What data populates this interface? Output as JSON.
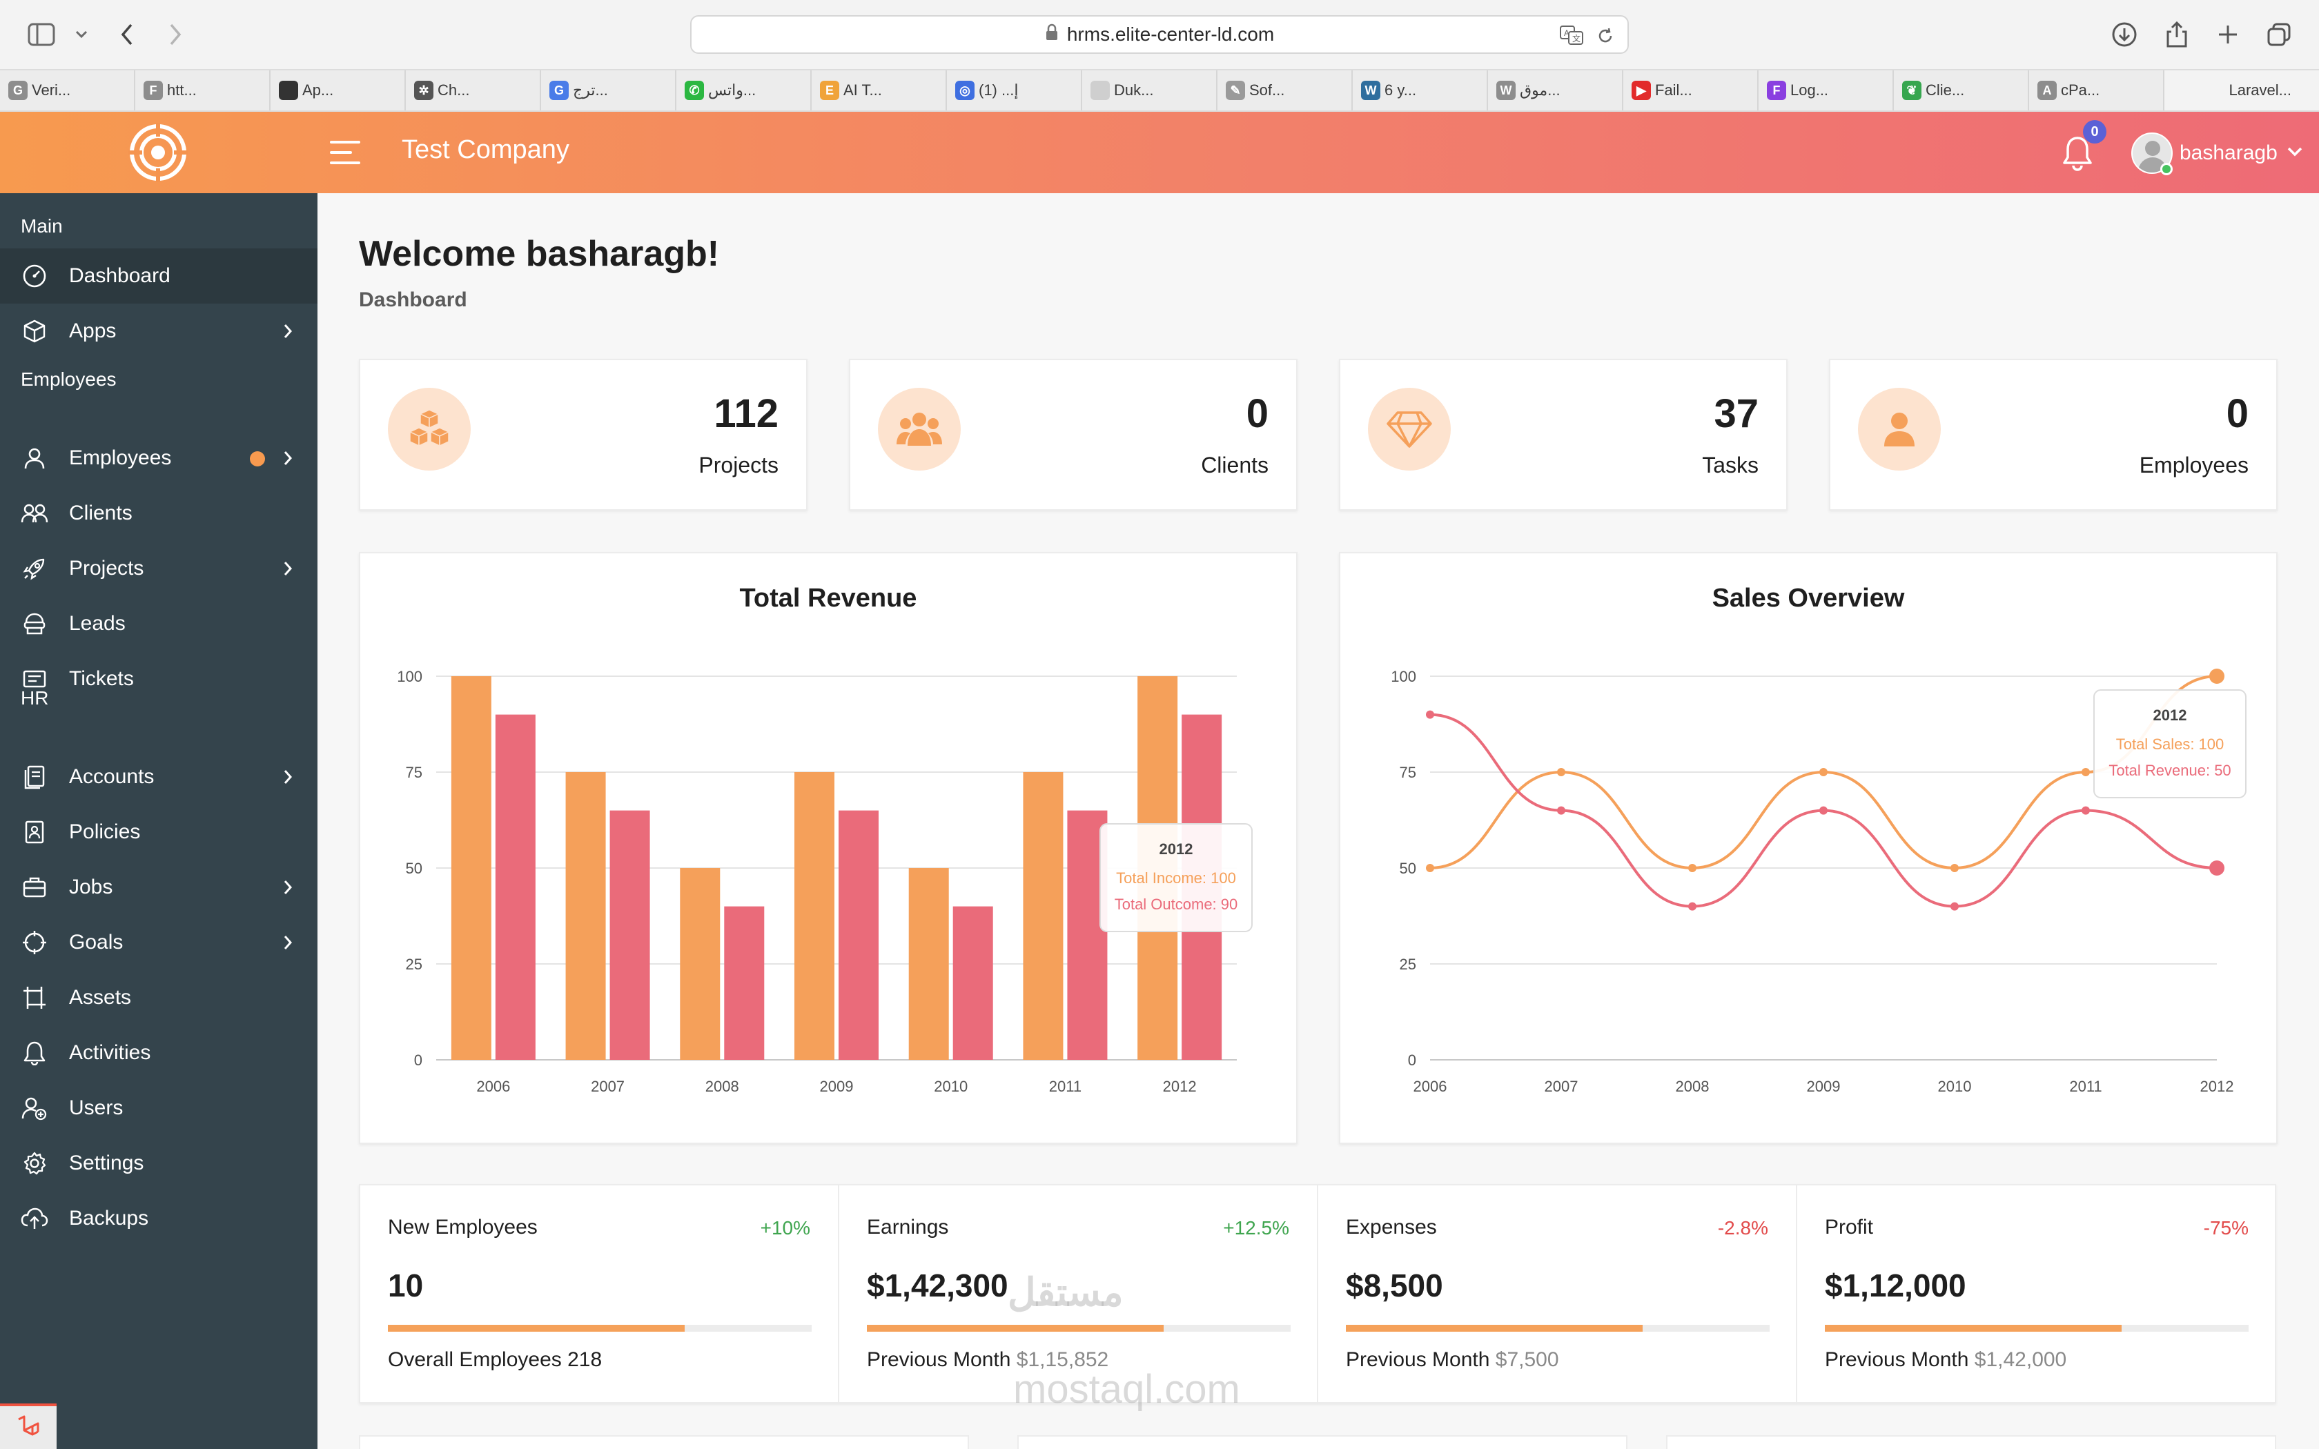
{
  "browser": {
    "url": "hrms.elite-center-ld.com",
    "bookmarks": [
      {
        "label": "Veri...",
        "icon": "g-logo-icon",
        "color": "#8d8d8d",
        "glyph": "G"
      },
      {
        "label": "htt...",
        "icon": "f-logo-icon",
        "color": "#8d8d8d",
        "glyph": "F"
      },
      {
        "label": "Ap...",
        "icon": "apple-icon",
        "color": "#333333",
        "glyph": ""
      },
      {
        "label": "Ch...",
        "icon": "chatgpt-icon",
        "color": "#555555",
        "glyph": "✲"
      },
      {
        "label": "ترج...",
        "icon": "translate-icon",
        "color": "#4a7ce8",
        "glyph": "G"
      },
      {
        "label": "واتس...",
        "icon": "whatsapp-icon",
        "color": "#2bb741",
        "glyph": "✆"
      },
      {
        "label": "AI T...",
        "icon": "e-logo-icon",
        "color": "#f0a33a",
        "glyph": "E"
      },
      {
        "label": "(1) ...إ",
        "icon": "circle-logo-icon",
        "color": "#3f6fe0",
        "glyph": "◎"
      },
      {
        "label": "Duk...",
        "icon": "blank-page-icon",
        "color": "#cfcfcf",
        "glyph": ""
      },
      {
        "label": "Sof...",
        "icon": "feather-icon",
        "color": "#9a9a9a",
        "glyph": "✎"
      },
      {
        "label": "6 y...",
        "icon": "wordpress-icon",
        "color": "#2f6e9e",
        "glyph": "W"
      },
      {
        "label": "موق...",
        "icon": "w-logo-icon",
        "color": "#8d8d8d",
        "glyph": "W"
      },
      {
        "label": "Fail...",
        "icon": "youtube-icon",
        "color": "#e22b2b",
        "glyph": "▶"
      },
      {
        "label": "Log...",
        "icon": "f-purple-icon",
        "color": "#8a3fe0",
        "glyph": "F"
      },
      {
        "label": "Clie...",
        "icon": "leaf-icon",
        "color": "#36a64f",
        "glyph": "❦"
      },
      {
        "label": "cPa...",
        "icon": "a-logo-icon",
        "color": "#8d8d8d",
        "glyph": "A"
      }
    ],
    "last_tab": "Laravel..."
  },
  "header": {
    "company": "Test Company",
    "notifications": "0",
    "username": "basharagb"
  },
  "sidebar": {
    "sections": {
      "main": "Main",
      "employees": "Employees",
      "hr": "HR"
    },
    "items": [
      {
        "label": "Dashboard",
        "icon": "dashboard-icon",
        "active": true,
        "arrow": false
      },
      {
        "label": "Apps",
        "icon": "cube-icon",
        "arrow": true
      },
      {
        "label": "Employees",
        "icon": "user-icon",
        "arrow": true,
        "dot": true
      },
      {
        "label": "Clients",
        "icon": "users-icon",
        "arrow": false
      },
      {
        "label": "Projects",
        "icon": "rocket-icon",
        "arrow": true
      },
      {
        "label": "Leads",
        "icon": "leads-icon",
        "arrow": false
      },
      {
        "label": "Tickets",
        "icon": "ticket-icon",
        "arrow": false
      },
      {
        "label": "Accounts",
        "icon": "accounts-icon",
        "arrow": true
      },
      {
        "label": "Policies",
        "icon": "policy-icon",
        "arrow": false
      },
      {
        "label": "Jobs",
        "icon": "briefcase-icon",
        "arrow": true
      },
      {
        "label": "Goals",
        "icon": "crosshair-icon",
        "arrow": true
      },
      {
        "label": "Assets",
        "icon": "assets-icon",
        "arrow": false
      },
      {
        "label": "Activities",
        "icon": "bell-icon",
        "arrow": false
      },
      {
        "label": "Users",
        "icon": "user-plus-icon",
        "arrow": false
      },
      {
        "label": "Settings",
        "icon": "gear-icon",
        "arrow": false
      },
      {
        "label": "Backups",
        "icon": "cloud-upload-icon",
        "arrow": false
      }
    ]
  },
  "page": {
    "welcome": "Welcome basharagb!",
    "breadcrumb": "Dashboard"
  },
  "stats": [
    {
      "value": "112",
      "label": "Projects",
      "icon": "cubes-icon"
    },
    {
      "value": "0",
      "label": "Clients",
      "icon": "users-group-icon"
    },
    {
      "value": "37",
      "label": "Tasks",
      "icon": "diamond-icon"
    },
    {
      "value": "0",
      "label": "Employees",
      "icon": "user-icon"
    }
  ],
  "colors": {
    "orange": "#f5a05a",
    "pink": "#ea6b7a",
    "green": "#3fa54f",
    "red": "#e24b4b"
  },
  "chart_data": [
    {
      "type": "bar",
      "title": "Total Revenue",
      "categories": [
        "2006",
        "2007",
        "2008",
        "2009",
        "2010",
        "2011",
        "2012"
      ],
      "series": [
        {
          "name": "Total Income",
          "values": [
            100,
            75,
            50,
            75,
            50,
            75,
            100
          ]
        },
        {
          "name": "Total Outcome",
          "values": [
            90,
            65,
            40,
            65,
            40,
            65,
            90
          ]
        }
      ],
      "ylim": [
        0,
        100
      ],
      "yticks": [
        0,
        25,
        50,
        75,
        100
      ],
      "grid": true,
      "tooltip": {
        "title": "2012",
        "lines": [
          "Total Income: 100",
          "Total Outcome: 90"
        ]
      }
    },
    {
      "type": "line",
      "title": "Sales Overview",
      "categories": [
        "2006",
        "2007",
        "2008",
        "2009",
        "2010",
        "2011",
        "2012"
      ],
      "series": [
        {
          "name": "Total Sales",
          "values": [
            50,
            75,
            50,
            75,
            50,
            75,
            100
          ]
        },
        {
          "name": "Total Revenue",
          "values": [
            90,
            65,
            40,
            65,
            40,
            65,
            50
          ]
        }
      ],
      "ylim": [
        0,
        100
      ],
      "yticks": [
        0,
        25,
        50,
        75,
        100
      ],
      "grid": true,
      "tooltip": {
        "title": "2012",
        "lines": [
          "Total Sales: 100",
          "Total Revenue: 50"
        ]
      }
    }
  ],
  "metrics": [
    {
      "title": "New Employees",
      "change": "+10%",
      "positive": true,
      "value": "10",
      "progress": 0.7,
      "foot_label": "Overall Employees 218",
      "foot_value": ""
    },
    {
      "title": "Earnings",
      "change": "+12.5%",
      "positive": true,
      "value": "$1,42,300",
      "progress": 0.7,
      "foot_label": "Previous Month",
      "foot_value": "$1,15,852"
    },
    {
      "title": "Expenses",
      "change": "-2.8%",
      "positive": false,
      "value": "$8,500",
      "progress": 0.7,
      "foot_label": "Previous Month",
      "foot_value": "$7,500"
    },
    {
      "title": "Profit",
      "change": "-75%",
      "positive": false,
      "value": "$1,12,000",
      "progress": 0.7,
      "foot_label": "Previous Month",
      "foot_value": "$1,42,000"
    }
  ],
  "watermark": {
    "arabic": "مستقل",
    "latin": "mostaql.com"
  }
}
